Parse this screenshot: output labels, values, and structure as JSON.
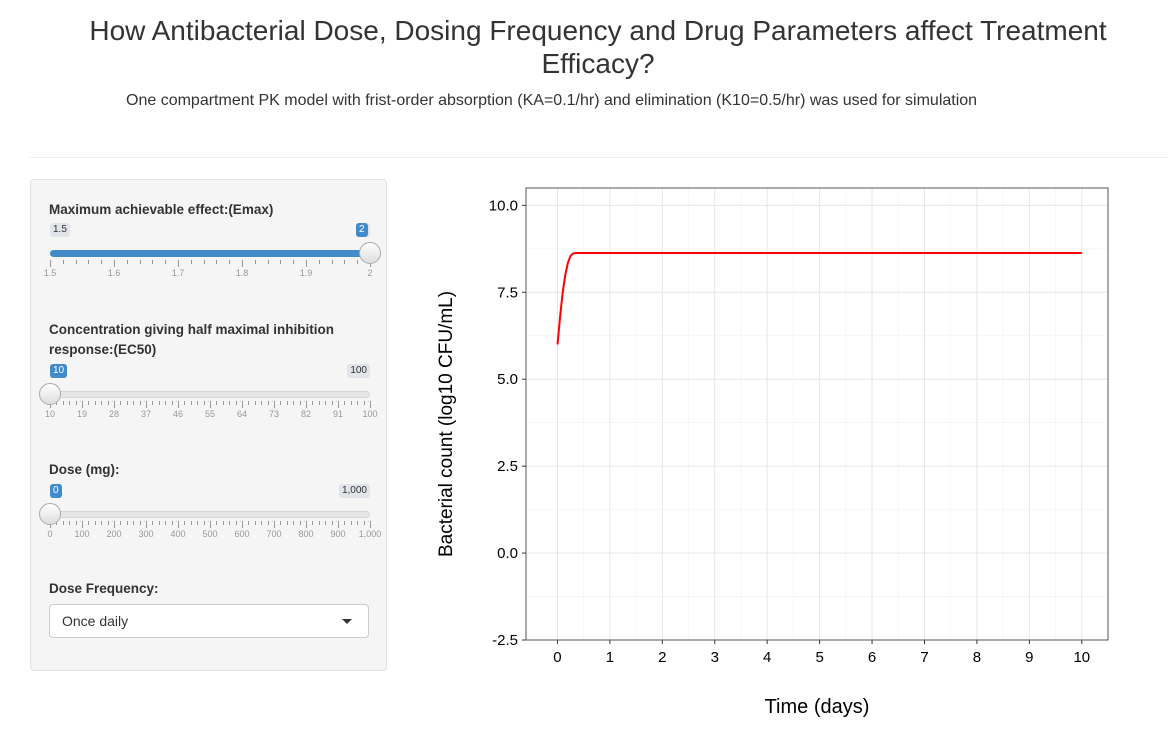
{
  "page": {
    "title": "How Antibacterial Dose, Dosing Frequency and Drug Parameters affect Treatment Efficacy?",
    "subtitle": "One compartment PK model with frist-order absorption (KA=0.1/hr) and elimination (K10=0.5/hr) was used for simulation"
  },
  "controls": {
    "emax": {
      "label": "Maximum achievable effect:(Emax)",
      "min_label": "1.5",
      "max_label": "2",
      "value_label": "2",
      "min": 1.5,
      "max": 2,
      "value": 2,
      "ticks": [
        "1.5",
        "1.6",
        "1.7",
        "1.8",
        "1.9",
        "2"
      ]
    },
    "ec50": {
      "label": "Concentration giving half maximal inhibition response:(EC50)",
      "min_label": "10",
      "max_label": "100",
      "value_label": "10",
      "min": 10,
      "max": 100,
      "value": 10,
      "ticks": [
        "10",
        "19",
        "28",
        "37",
        "46",
        "55",
        "64",
        "73",
        "82",
        "91",
        "100"
      ]
    },
    "dose": {
      "label": "Dose (mg):",
      "min_label": "0",
      "max_label": "1,000",
      "value_label": "0",
      "min": 0,
      "max": 1000,
      "value": 0,
      "ticks": [
        "0",
        "100",
        "200",
        "300",
        "400",
        "500",
        "600",
        "700",
        "800",
        "900",
        "1,000"
      ]
    },
    "frequency": {
      "label": "Dose Frequency:",
      "selected": "Once daily"
    }
  },
  "chart_data": {
    "type": "line",
    "title": "",
    "xlabel": "Time (days)",
    "ylabel": "Bacterial count (log10 CFU/mL)",
    "xlim": [
      -0.6,
      10.5
    ],
    "ylim": [
      -2.5,
      10.5
    ],
    "xticks": [
      "0",
      "1",
      "2",
      "3",
      "4",
      "5",
      "6",
      "7",
      "8",
      "9",
      "10"
    ],
    "yticks": [
      "-2.5",
      "0.0",
      "2.5",
      "5.0",
      "7.5",
      "10.0"
    ],
    "grid": true,
    "series": [
      {
        "color": "#ff0000",
        "x": [
          0,
          0.05,
          0.1,
          0.15,
          0.2,
          0.25,
          0.3,
          0.35,
          0.4,
          1,
          2,
          3,
          4,
          5,
          6,
          7,
          8,
          9,
          10
        ],
        "y": [
          6.0,
          6.8,
          7.5,
          8.0,
          8.35,
          8.55,
          8.62,
          8.63,
          8.63,
          8.63,
          8.63,
          8.63,
          8.63,
          8.63,
          8.63,
          8.63,
          8.63,
          8.63,
          8.63
        ]
      }
    ]
  }
}
